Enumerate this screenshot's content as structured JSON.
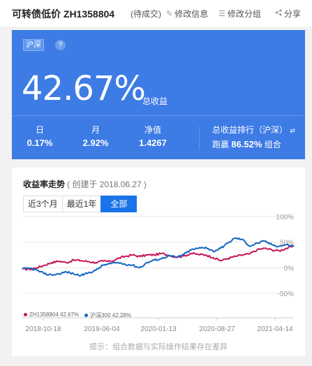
{
  "header": {
    "title": "可转债低价 ZH1358804",
    "status": "(待成交)",
    "actions": [
      {
        "label": "修改信息",
        "icon": "pencil-icon"
      },
      {
        "label": "修改分组",
        "icon": "list-icon"
      },
      {
        "label": "分享",
        "icon": "share-icon"
      }
    ]
  },
  "summary": {
    "market_tag": "沪深",
    "help": "?",
    "total_return": "42.67%",
    "total_return_label": "总收益",
    "metrics": [
      {
        "label": "日",
        "value": "0.17%"
      },
      {
        "label": "月",
        "value": "2.92%"
      },
      {
        "label": "净值",
        "value": "1.4267"
      }
    ],
    "rank_label": "总收益排行（沪深）",
    "rank_prefix": "跑赢",
    "rank_value": "86.52%",
    "rank_suffix": "组合"
  },
  "chart_section": {
    "title": "收益率走势",
    "created": "( 创建于 2018.06.27 )",
    "tabs": [
      "近3个月",
      "最近1年",
      "全部"
    ],
    "active_tab": "全部",
    "hint": "提示：组合数据与实际操作结果存在差异"
  },
  "colors": {
    "accent": "#3d7be5",
    "portfolio": "#c8145a",
    "index": "#1565c0"
  },
  "chart_data": {
    "type": "line",
    "x_ticks": [
      "2018-10-18",
      "2019-06-04",
      "2020-01-13",
      "2020-08-27",
      "2021-04-14"
    ],
    "y_ticks": [
      "100%",
      "50%",
      "0%",
      "-50%"
    ],
    "ylim": [
      -50,
      100
    ],
    "series": [
      {
        "name": "ZH1358804",
        "legend": "ZH1358804 42.67%",
        "color": "#c8145a",
        "values": [
          -2,
          -3,
          0,
          5,
          10,
          13,
          10,
          15,
          14,
          12,
          10,
          13,
          12,
          18,
          22,
          25,
          22,
          25,
          25,
          28,
          24,
          21,
          23,
          28,
          26,
          25,
          20,
          14,
          18,
          22,
          25,
          27,
          35,
          38,
          35,
          33,
          38,
          42
        ]
      },
      {
        "name": "沪深300",
        "legend": "沪深300 42.28%",
        "color": "#1565c0",
        "values": [
          -3,
          -1,
          -5,
          -12,
          -14,
          -12,
          -8,
          -12,
          -15,
          -10,
          -5,
          5,
          8,
          10,
          7,
          5,
          0,
          10,
          15,
          18,
          24,
          20,
          26,
          35,
          38,
          40,
          32,
          38,
          48,
          58,
          55,
          42,
          48,
          52,
          45,
          42,
          45,
          42
        ]
      }
    ]
  }
}
